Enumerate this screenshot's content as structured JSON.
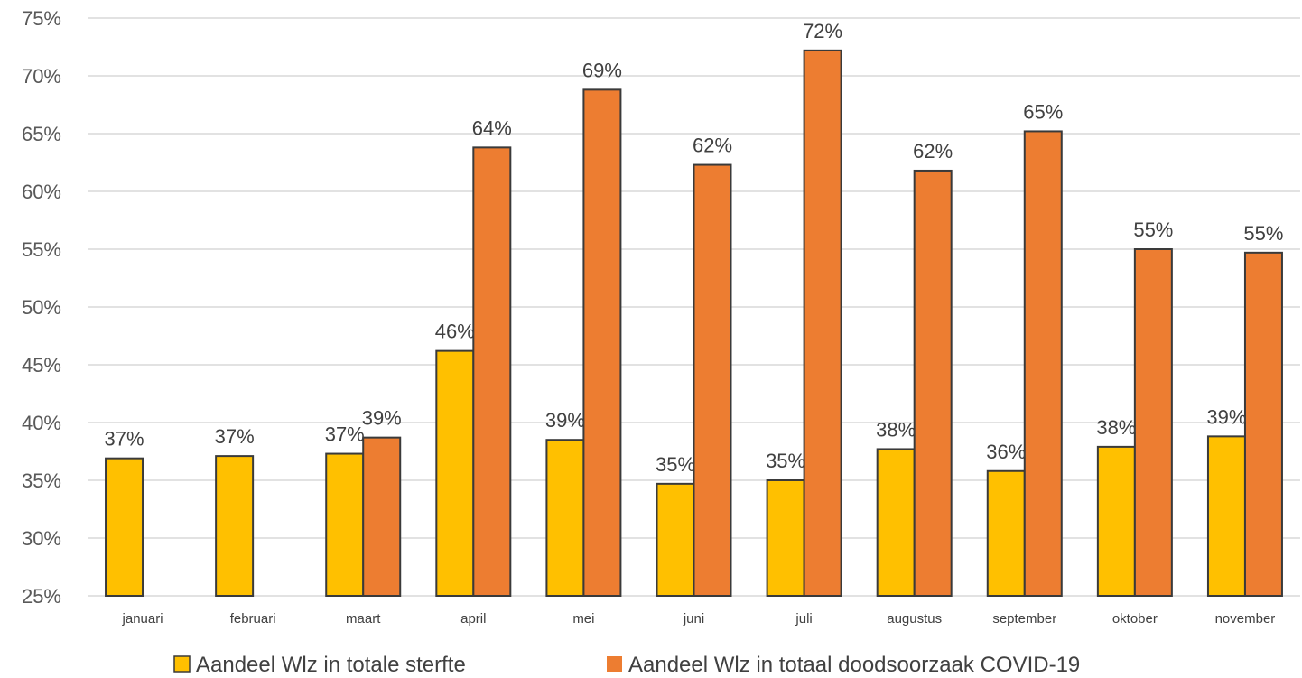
{
  "chart_data": {
    "type": "bar",
    "categories": [
      "januari",
      "februari",
      "maart",
      "april",
      "mei",
      "juni",
      "juli",
      "augustus",
      "september",
      "oktober",
      "november"
    ],
    "series": [
      {
        "name": "Aandeel Wlz in totale sterfte",
        "color": "#FFC000",
        "values": [
          36.9,
          37.1,
          37.3,
          46.2,
          38.5,
          34.7,
          35.0,
          37.7,
          35.8,
          37.9,
          38.8
        ],
        "labels": [
          "37%",
          "37%",
          "37%",
          "46%",
          "39%",
          "35%",
          "35%",
          "38%",
          "36%",
          "38%",
          "39%"
        ]
      },
      {
        "name": "Aandeel Wlz in totaal doodsoorzaak COVID-19",
        "color": "#ED7D31",
        "values": [
          null,
          null,
          38.7,
          63.8,
          68.8,
          62.3,
          72.2,
          61.8,
          65.2,
          55.0,
          54.7
        ],
        "labels": [
          "",
          "",
          "39%",
          "64%",
          "69%",
          "62%",
          "72%",
          "62%",
          "65%",
          "55%",
          "55%"
        ]
      }
    ],
    "ylim": [
      25,
      75
    ],
    "yticks": [
      25,
      30,
      35,
      40,
      45,
      50,
      55,
      60,
      65,
      70,
      75
    ],
    "ytick_labels": [
      "25%",
      "30%",
      "35%",
      "40%",
      "45%",
      "50%",
      "55%",
      "60%",
      "65%",
      "70%",
      "75%"
    ],
    "grid": true,
    "legend": "bottom"
  }
}
